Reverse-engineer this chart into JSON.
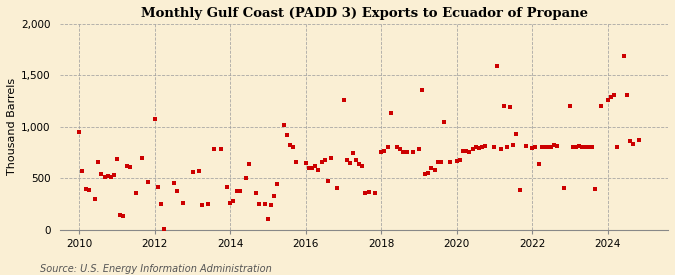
{
  "title": "Monthly Gulf Coast (PADD 3) Exports to Ecuador of Propane",
  "ylabel": "Thousand Barrels",
  "source": "Source: U.S. Energy Information Administration",
  "background_color": "#faefd4",
  "plot_bg_color": "#faefd4",
  "marker_color": "#cc0000",
  "ylim": [
    0,
    2000
  ],
  "yticks": [
    0,
    500,
    1000,
    1500,
    2000
  ],
  "xlim_start": 2009.5,
  "xlim_end": 2025.6,
  "xticks": [
    2010,
    2012,
    2014,
    2016,
    2018,
    2020,
    2022,
    2024
  ],
  "data": [
    [
      2010.0,
      950
    ],
    [
      2010.08,
      570
    ],
    [
      2010.17,
      400
    ],
    [
      2010.25,
      390
    ],
    [
      2010.42,
      295
    ],
    [
      2010.5,
      660
    ],
    [
      2010.58,
      540
    ],
    [
      2010.67,
      510
    ],
    [
      2010.75,
      520
    ],
    [
      2010.83,
      510
    ],
    [
      2010.92,
      530
    ],
    [
      2011.0,
      690
    ],
    [
      2011.08,
      140
    ],
    [
      2011.17,
      130
    ],
    [
      2011.25,
      620
    ],
    [
      2011.33,
      610
    ],
    [
      2011.5,
      360
    ],
    [
      2011.67,
      700
    ],
    [
      2011.83,
      460
    ],
    [
      2012.0,
      1080
    ],
    [
      2012.08,
      420
    ],
    [
      2012.17,
      255
    ],
    [
      2012.25,
      5
    ],
    [
      2012.5,
      450
    ],
    [
      2012.58,
      380
    ],
    [
      2012.75,
      260
    ],
    [
      2013.0,
      560
    ],
    [
      2013.17,
      570
    ],
    [
      2013.25,
      240
    ],
    [
      2013.42,
      250
    ],
    [
      2013.58,
      780
    ],
    [
      2013.75,
      780
    ],
    [
      2013.92,
      420
    ],
    [
      2014.0,
      260
    ],
    [
      2014.08,
      280
    ],
    [
      2014.17,
      380
    ],
    [
      2014.25,
      380
    ],
    [
      2014.42,
      500
    ],
    [
      2014.5,
      640
    ],
    [
      2014.67,
      360
    ],
    [
      2014.75,
      250
    ],
    [
      2014.92,
      250
    ],
    [
      2015.0,
      105
    ],
    [
      2015.08,
      240
    ],
    [
      2015.17,
      330
    ],
    [
      2015.25,
      440
    ],
    [
      2015.42,
      1020
    ],
    [
      2015.5,
      920
    ],
    [
      2015.58,
      820
    ],
    [
      2015.67,
      800
    ],
    [
      2015.75,
      660
    ],
    [
      2016.0,
      650
    ],
    [
      2016.08,
      600
    ],
    [
      2016.17,
      600
    ],
    [
      2016.25,
      620
    ],
    [
      2016.33,
      580
    ],
    [
      2016.42,
      660
    ],
    [
      2016.5,
      675
    ],
    [
      2016.58,
      470
    ],
    [
      2016.67,
      700
    ],
    [
      2016.83,
      410
    ],
    [
      2017.0,
      1260
    ],
    [
      2017.08,
      680
    ],
    [
      2017.17,
      650
    ],
    [
      2017.25,
      750
    ],
    [
      2017.33,
      680
    ],
    [
      2017.42,
      640
    ],
    [
      2017.5,
      620
    ],
    [
      2017.58,
      360
    ],
    [
      2017.67,
      370
    ],
    [
      2017.83,
      360
    ],
    [
      2018.0,
      760
    ],
    [
      2018.08,
      770
    ],
    [
      2018.17,
      800
    ],
    [
      2018.25,
      1130
    ],
    [
      2018.42,
      800
    ],
    [
      2018.5,
      780
    ],
    [
      2018.58,
      760
    ],
    [
      2018.67,
      760
    ],
    [
      2018.83,
      760
    ],
    [
      2019.0,
      780
    ],
    [
      2019.08,
      1355
    ],
    [
      2019.17,
      540
    ],
    [
      2019.25,
      550
    ],
    [
      2019.33,
      600
    ],
    [
      2019.42,
      580
    ],
    [
      2019.5,
      660
    ],
    [
      2019.58,
      660
    ],
    [
      2019.67,
      1050
    ],
    [
      2019.83,
      660
    ],
    [
      2020.0,
      670
    ],
    [
      2020.08,
      680
    ],
    [
      2020.17,
      770
    ],
    [
      2020.25,
      770
    ],
    [
      2020.33,
      760
    ],
    [
      2020.42,
      780
    ],
    [
      2020.5,
      800
    ],
    [
      2020.58,
      790
    ],
    [
      2020.67,
      800
    ],
    [
      2020.75,
      810
    ],
    [
      2021.0,
      800
    ],
    [
      2021.08,
      1590
    ],
    [
      2021.17,
      780
    ],
    [
      2021.25,
      1200
    ],
    [
      2021.33,
      800
    ],
    [
      2021.42,
      1190
    ],
    [
      2021.5,
      820
    ],
    [
      2021.58,
      930
    ],
    [
      2021.67,
      390
    ],
    [
      2021.83,
      810
    ],
    [
      2022.0,
      795
    ],
    [
      2022.08,
      800
    ],
    [
      2022.17,
      640
    ],
    [
      2022.25,
      805
    ],
    [
      2022.33,
      800
    ],
    [
      2022.42,
      800
    ],
    [
      2022.5,
      800
    ],
    [
      2022.58,
      820
    ],
    [
      2022.67,
      810
    ],
    [
      2022.83,
      410
    ],
    [
      2023.0,
      1200
    ],
    [
      2023.08,
      800
    ],
    [
      2023.17,
      800
    ],
    [
      2023.25,
      810
    ],
    [
      2023.33,
      800
    ],
    [
      2023.42,
      800
    ],
    [
      2023.5,
      800
    ],
    [
      2023.58,
      800
    ],
    [
      2023.67,
      400
    ],
    [
      2023.83,
      1200
    ],
    [
      2024.0,
      1265
    ],
    [
      2024.08,
      1285
    ],
    [
      2024.17,
      1305
    ],
    [
      2024.25,
      800
    ],
    [
      2024.42,
      1690
    ],
    [
      2024.5,
      1305
    ],
    [
      2024.58,
      860
    ],
    [
      2024.67,
      830
    ],
    [
      2024.83,
      870
    ]
  ]
}
